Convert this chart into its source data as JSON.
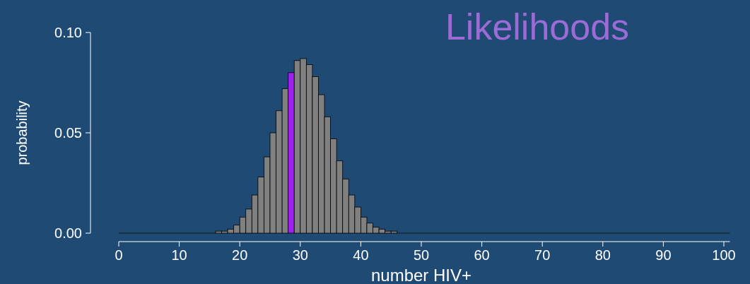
{
  "chart_data": {
    "type": "histogram",
    "title": "Likelihoods",
    "xlabel": "number HIV+",
    "ylabel": "probability",
    "bins": [
      0,
      1,
      2,
      3,
      4,
      5,
      6,
      7,
      8,
      9,
      10,
      11,
      12,
      13,
      14,
      15,
      16,
      17,
      18,
      19,
      20,
      21,
      22,
      23,
      24,
      25,
      26,
      27,
      28,
      29,
      30,
      31,
      32,
      33,
      34,
      35,
      36,
      37,
      38,
      39,
      40,
      41,
      42,
      43,
      44,
      45,
      46,
      47,
      48,
      49,
      50,
      51,
      52,
      53,
      54,
      55,
      56,
      57,
      58,
      59,
      60,
      61,
      62,
      63,
      64,
      65,
      66,
      67,
      68,
      69,
      70,
      71,
      72,
      73,
      74,
      75,
      76,
      77,
      78,
      79,
      80,
      81,
      82,
      83,
      84,
      85,
      86,
      87,
      88,
      89,
      90,
      91,
      92,
      93,
      94,
      95,
      96,
      97,
      98,
      99,
      100,
      101
    ],
    "values": [
      0,
      0,
      0,
      0,
      0,
      0,
      0,
      0,
      0,
      0,
      0,
      0,
      0,
      0,
      0,
      0,
      0.001,
      0.001,
      0.002,
      0.004,
      0.008,
      0.012,
      0.019,
      0.028,
      0.038,
      0.05,
      0.061,
      0.072,
      0.08,
      0.086,
      0.087,
      0.084,
      0.078,
      0.069,
      0.058,
      0.047,
      0.036,
      0.027,
      0.019,
      0.013,
      0.008,
      0.005,
      0.003,
      0.002,
      0.001,
      0.001,
      0,
      0,
      0,
      0,
      0,
      0,
      0,
      0,
      0,
      0,
      0,
      0,
      0,
      0,
      0,
      0,
      0,
      0,
      0,
      0,
      0,
      0,
      0,
      0,
      0,
      0,
      0,
      0,
      0,
      0,
      0,
      0,
      0,
      0,
      0,
      0,
      0,
      0,
      0,
      0,
      0,
      0,
      0,
      0,
      0,
      0,
      0,
      0,
      0,
      0,
      0,
      0,
      0,
      0,
      0
    ],
    "colors": [
      "#808080",
      "#808080",
      "#808080",
      "#808080",
      "#808080",
      "#808080",
      "#808080",
      "#808080",
      "#808080",
      "#808080",
      "#808080",
      "#808080",
      "#808080",
      "#808080",
      "#808080",
      "#808080",
      "#808080",
      "#808080",
      "#808080",
      "#808080",
      "#808080",
      "#808080",
      "#808080",
      "#808080",
      "#808080",
      "#808080",
      "#808080",
      "#808080",
      "#a020f0",
      "#808080",
      "#808080",
      "#808080",
      "#808080",
      "#808080",
      "#808080",
      "#808080",
      "#808080",
      "#808080",
      "#808080",
      "#808080",
      "#808080",
      "#808080",
      "#808080",
      "#808080",
      "#808080",
      "#808080",
      "#808080",
      "#808080",
      "#808080",
      "#808080",
      "#808080",
      "#808080",
      "#808080",
      "#808080",
      "#808080",
      "#808080",
      "#808080",
      "#808080",
      "#808080",
      "#808080",
      "#808080",
      "#808080",
      "#808080",
      "#808080",
      "#808080",
      "#808080",
      "#808080",
      "#808080",
      "#808080",
      "#808080",
      "#808080",
      "#808080",
      "#808080",
      "#808080",
      "#808080",
      "#808080",
      "#808080",
      "#808080",
      "#808080",
      "#808080",
      "#808080",
      "#808080",
      "#808080",
      "#808080",
      "#808080",
      "#808080",
      "#808080",
      "#808080",
      "#808080",
      "#808080",
      "#808080",
      "#808080",
      "#808080",
      "#808080",
      "#808080",
      "#808080",
      "#808080",
      "#808080",
      "#808080",
      "#808080",
      "#808080"
    ],
    "xlim": [
      0,
      101
    ],
    "xticks": [
      0,
      10,
      20,
      30,
      40,
      50,
      60,
      70,
      80,
      90,
      100
    ],
    "ylim": [
      0,
      0.1
    ],
    "yticks": [
      {
        "value": 0,
        "label": "0.00"
      },
      {
        "value": 0.05,
        "label": "0.05"
      },
      {
        "value": 0.1,
        "label": "0.10"
      }
    ],
    "grid": false
  }
}
